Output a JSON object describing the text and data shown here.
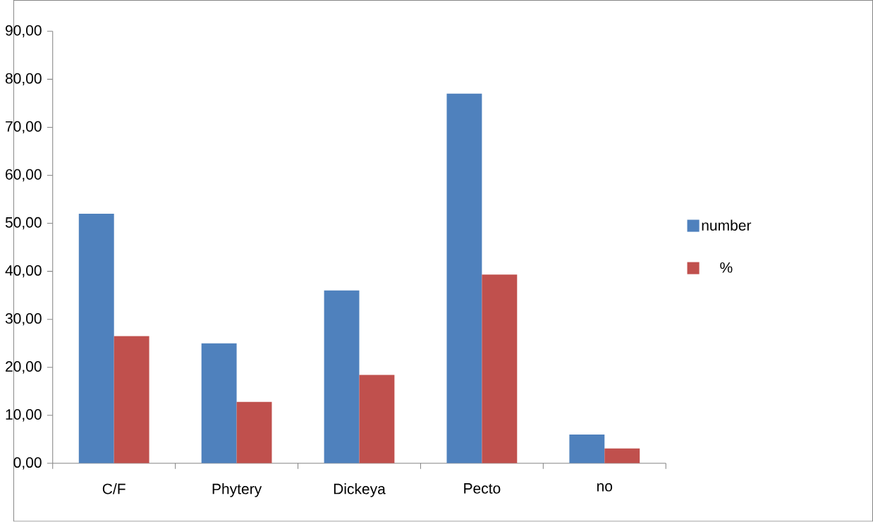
{
  "chart_data": {
    "type": "bar",
    "categories": [
      "C/F",
      "Phytery",
      "Dickeya",
      "Pecto",
      "no"
    ],
    "series": [
      {
        "name": "number",
        "color": "#4f81bd",
        "values": [
          52,
          25,
          36,
          77,
          6
        ]
      },
      {
        "name": "%",
        "color": "#c0504d",
        "values": [
          26.5,
          12.8,
          18.4,
          39.3,
          3.1
        ]
      }
    ],
    "ylim": [
      0,
      90
    ],
    "yticks": [
      {
        "value": 0,
        "label": "0,00"
      },
      {
        "value": 10,
        "label": "10,00"
      },
      {
        "value": 20,
        "label": "20,00"
      },
      {
        "value": 30,
        "label": "30,00"
      },
      {
        "value": 40,
        "label": "40,00"
      },
      {
        "value": 50,
        "label": "50,00"
      },
      {
        "value": 60,
        "label": "60,00"
      },
      {
        "value": 70,
        "label": "70,00"
      },
      {
        "value": 80,
        "label": "80,00"
      },
      {
        "value": 90,
        "label": "90,00"
      }
    ],
    "grid": false,
    "legend": "right"
  }
}
